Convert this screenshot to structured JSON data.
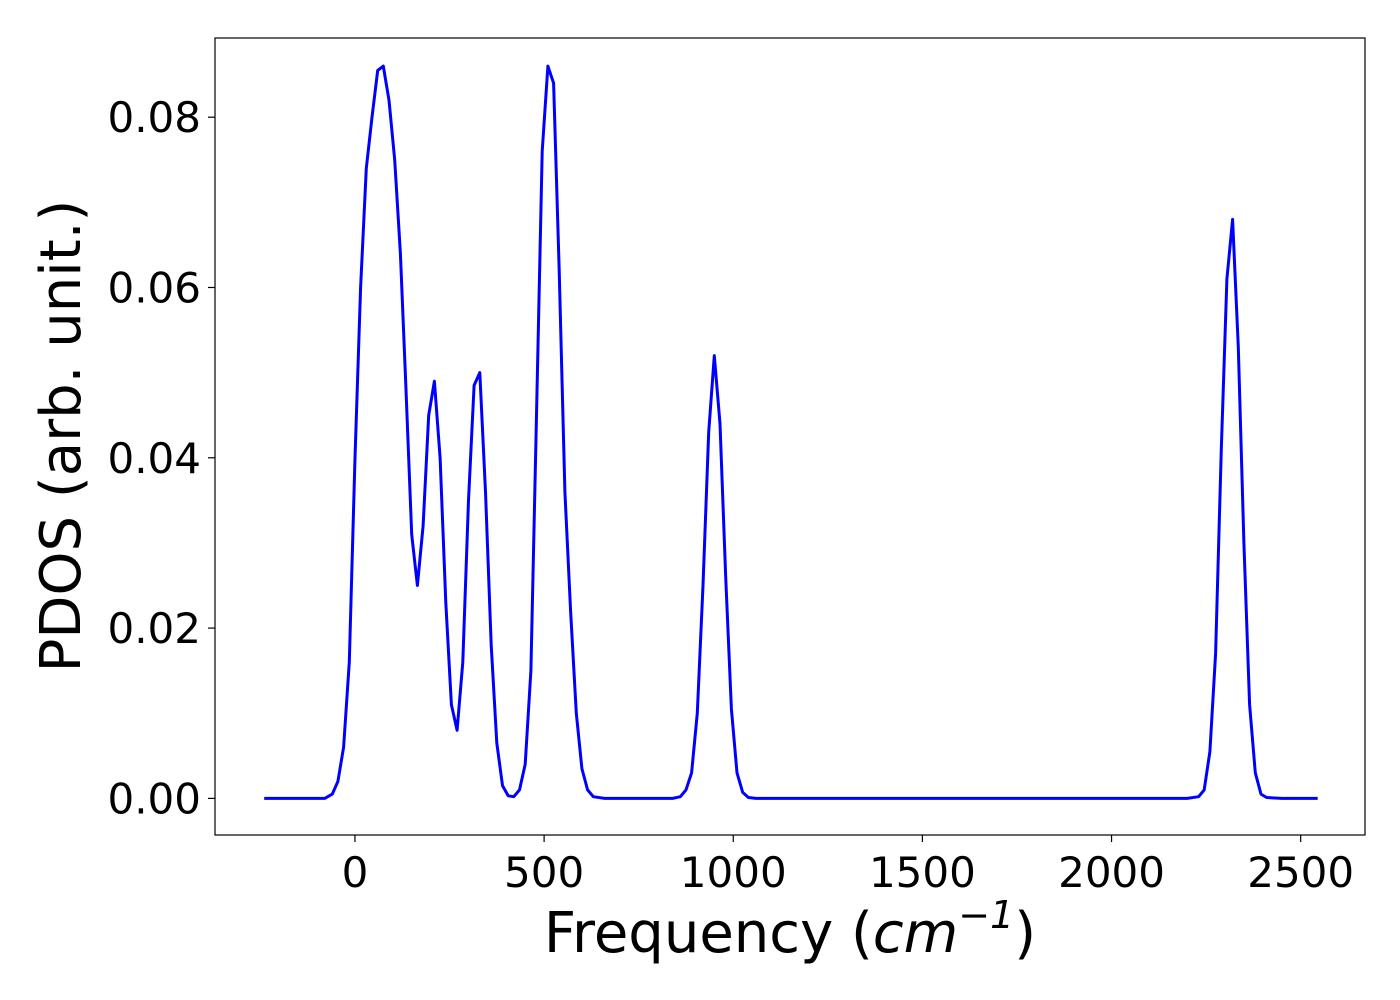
{
  "chart_data": {
    "type": "line",
    "title": "",
    "xlabel_text": "Frequency (",
    "xlabel_math": "cm",
    "xlabel_sup": "−1",
    "xlabel_close": ")",
    "ylabel": "PDOS (arb. unit.)",
    "xlim": [
      -370,
      2670
    ],
    "ylim": [
      -0.0043,
      0.0893
    ],
    "x_ticks": [
      0,
      500,
      1000,
      1500,
      2000,
      2500
    ],
    "x_tick_labels": [
      "0",
      "500",
      "1000",
      "1500",
      "2000",
      "2500"
    ],
    "y_ticks": [
      0.0,
      0.02,
      0.04,
      0.06,
      0.08
    ],
    "y_tick_labels": [
      "0.00",
      "0.02",
      "0.04",
      "0.06",
      "0.08"
    ],
    "grid": false,
    "legend": false,
    "series": [
      {
        "color": "#0000ff",
        "x": [
          -240,
          -200,
          -160,
          -120,
          -80,
          -60,
          -45,
          -30,
          -15,
          0,
          15,
          30,
          45,
          60,
          75,
          90,
          105,
          120,
          135,
          150,
          165,
          180,
          195,
          210,
          225,
          240,
          255,
          270,
          285,
          300,
          315,
          330,
          345,
          360,
          375,
          390,
          405,
          420,
          435,
          450,
          465,
          480,
          495,
          510,
          525,
          540,
          555,
          570,
          585,
          600,
          615,
          630,
          660,
          700,
          750,
          800,
          840,
          860,
          875,
          890,
          905,
          920,
          935,
          950,
          965,
          980,
          995,
          1010,
          1025,
          1040,
          1060,
          1100,
          1200,
          1400,
          1600,
          1800,
          2000,
          2100,
          2200,
          2230,
          2245,
          2260,
          2275,
          2290,
          2305,
          2320,
          2335,
          2350,
          2365,
          2380,
          2395,
          2410,
          2450,
          2500,
          2545
        ],
        "y": [
          0,
          0,
          0,
          0,
          0,
          0.0005,
          0.002,
          0.006,
          0.016,
          0.04,
          0.06,
          0.074,
          0.08,
          0.0855,
          0.086,
          0.082,
          0.075,
          0.064,
          0.048,
          0.031,
          0.025,
          0.032,
          0.045,
          0.049,
          0.04,
          0.023,
          0.011,
          0.008,
          0.016,
          0.035,
          0.0485,
          0.05,
          0.036,
          0.018,
          0.0065,
          0.0015,
          0.0003,
          0.0002,
          0.001,
          0.004,
          0.015,
          0.045,
          0.076,
          0.086,
          0.084,
          0.062,
          0.036,
          0.022,
          0.01,
          0.0035,
          0.001,
          0.0002,
          0,
          0,
          0,
          0,
          0,
          0.0002,
          0.001,
          0.003,
          0.01,
          0.025,
          0.043,
          0.052,
          0.044,
          0.026,
          0.0105,
          0.003,
          0.0007,
          0.0001,
          0,
          0,
          0,
          0,
          0,
          0,
          0,
          0,
          0,
          0.0002,
          0.001,
          0.0055,
          0.017,
          0.041,
          0.061,
          0.068,
          0.053,
          0.03,
          0.011,
          0.003,
          0.0005,
          0.0001,
          0,
          0,
          0
        ]
      }
    ]
  }
}
